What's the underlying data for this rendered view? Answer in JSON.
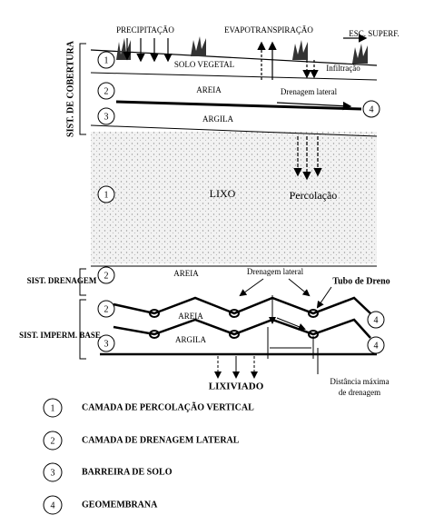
{
  "cover": {
    "label": "SIST. DE COBERTURA",
    "precipitation": "PRECIPITAÇÃO",
    "evapotranspiration": "EVAPOTRANSPIRAÇÃO",
    "runoff": "ESC. SUPERF.",
    "topsoil": "SOLO VEGETAL",
    "infiltration": "Infiltração",
    "sand": "AREIA",
    "lateral_drainage": "Drenagem lateral",
    "clay": "ARGILA",
    "markers": [
      "1",
      "2",
      "3",
      "4"
    ]
  },
  "waste": {
    "marker": "1",
    "label": "LIXO",
    "percolation": "Percolação"
  },
  "drainage": {
    "label": "SIST. DRENAGEM",
    "marker": "2",
    "sand": "AREIA",
    "lateral_drainage": "Drenagem lateral",
    "pipe": "Tubo de Dreno"
  },
  "base": {
    "label": "SIST. IMPERM. BASE",
    "markers": [
      "2",
      "3",
      "4",
      "4"
    ],
    "sand": "AREIA",
    "clay": "ARGILA",
    "leachate": "LIXIVIADO",
    "distance": [
      "Distância máxima",
      "de drenagem"
    ]
  },
  "legend": [
    {
      "number": "1",
      "text": "CAMADA DE PERCOLAÇÃO VERTICAL"
    },
    {
      "number": "2",
      "text": "CAMADA DE DRENAGEM LATERAL"
    },
    {
      "number": "3",
      "text": "BARREIRA DE SOLO"
    },
    {
      "number": "4",
      "text": "GEOMEMBRANA"
    }
  ]
}
